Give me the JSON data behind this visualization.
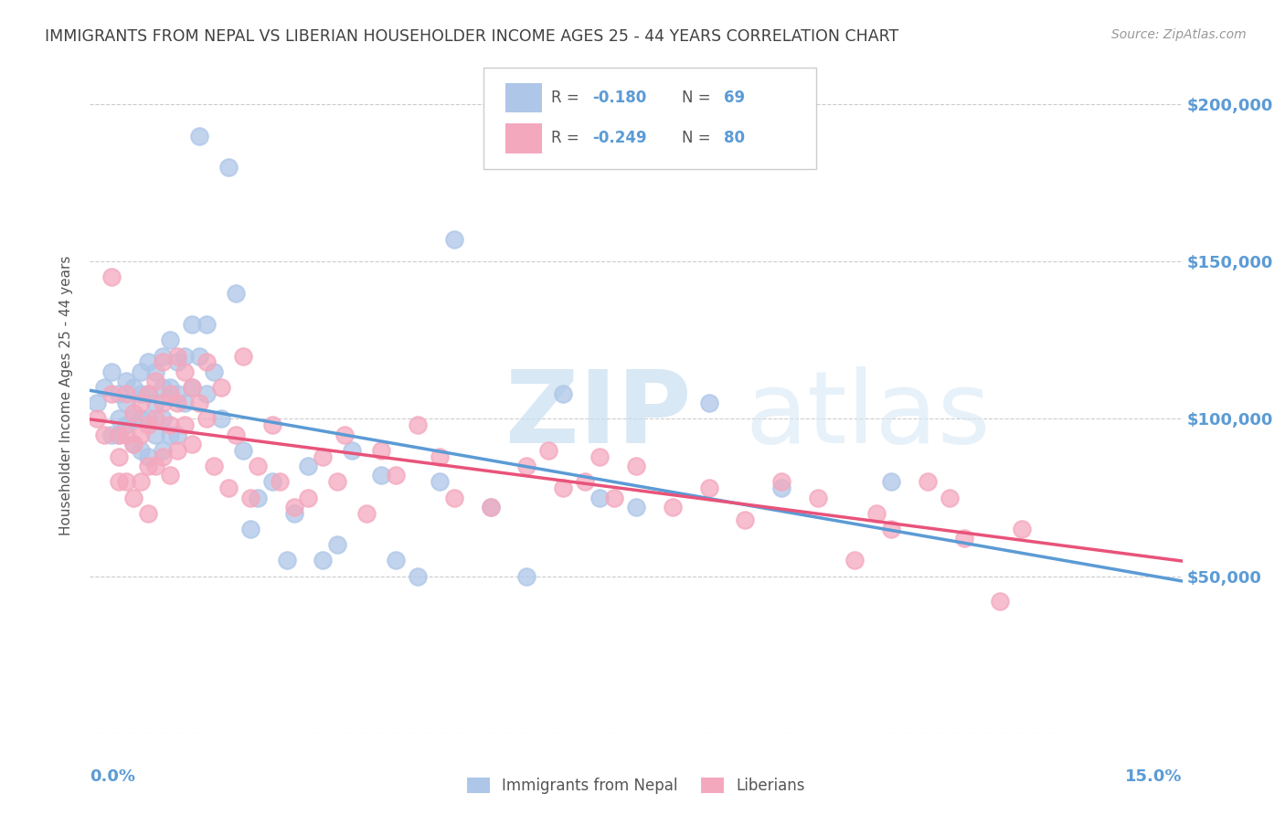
{
  "title": "IMMIGRANTS FROM NEPAL VS LIBERIAN HOUSEHOLDER INCOME AGES 25 - 44 YEARS CORRELATION CHART",
  "source": "Source: ZipAtlas.com",
  "ylabel": "Householder Income Ages 25 - 44 years",
  "yticks": [
    0,
    50000,
    100000,
    150000,
    200000
  ],
  "ytick_labels": [
    "",
    "$50,000",
    "$100,000",
    "$150,000",
    "$200,000"
  ],
  "xmin": 0.0,
  "xmax": 0.15,
  "ymin": 0,
  "ymax": 215000,
  "nepal_color": "#aec6e8",
  "liberia_color": "#f4a8be",
  "nepal_line_color": "#5b9bd5",
  "liberia_line_color": "#e8537a",
  "legend_label_nepal": "Immigrants from Nepal",
  "legend_label_liberia": "Liberians",
  "title_color": "#404040",
  "axis_color": "#5b9bd5",
  "nepal_scatter_x": [
    0.001,
    0.002,
    0.003,
    0.003,
    0.004,
    0.004,
    0.004,
    0.005,
    0.005,
    0.005,
    0.006,
    0.006,
    0.006,
    0.007,
    0.007,
    0.007,
    0.007,
    0.008,
    0.008,
    0.008,
    0.008,
    0.009,
    0.009,
    0.009,
    0.01,
    0.01,
    0.01,
    0.01,
    0.011,
    0.011,
    0.011,
    0.012,
    0.012,
    0.012,
    0.013,
    0.013,
    0.014,
    0.014,
    0.015,
    0.015,
    0.016,
    0.016,
    0.017,
    0.018,
    0.019,
    0.02,
    0.021,
    0.022,
    0.023,
    0.025,
    0.027,
    0.028,
    0.03,
    0.032,
    0.034,
    0.036,
    0.04,
    0.042,
    0.045,
    0.048,
    0.05,
    0.055,
    0.06,
    0.065,
    0.07,
    0.075,
    0.085,
    0.095,
    0.11
  ],
  "nepal_scatter_y": [
    105000,
    110000,
    95000,
    115000,
    108000,
    100000,
    95000,
    112000,
    105000,
    98000,
    110000,
    100000,
    92000,
    115000,
    108000,
    100000,
    90000,
    118000,
    108000,
    100000,
    88000,
    115000,
    105000,
    95000,
    120000,
    110000,
    100000,
    90000,
    125000,
    110000,
    95000,
    118000,
    108000,
    95000,
    120000,
    105000,
    130000,
    110000,
    190000,
    120000,
    130000,
    108000,
    115000,
    100000,
    180000,
    140000,
    90000,
    65000,
    75000,
    80000,
    55000,
    70000,
    85000,
    55000,
    60000,
    90000,
    82000,
    55000,
    50000,
    80000,
    157000,
    72000,
    50000,
    108000,
    75000,
    72000,
    105000,
    78000,
    80000
  ],
  "liberia_scatter_x": [
    0.001,
    0.002,
    0.003,
    0.003,
    0.004,
    0.004,
    0.004,
    0.005,
    0.005,
    0.005,
    0.006,
    0.006,
    0.006,
    0.007,
    0.007,
    0.007,
    0.008,
    0.008,
    0.008,
    0.008,
    0.009,
    0.009,
    0.009,
    0.01,
    0.01,
    0.01,
    0.011,
    0.011,
    0.011,
    0.012,
    0.012,
    0.012,
    0.013,
    0.013,
    0.014,
    0.014,
    0.015,
    0.016,
    0.016,
    0.017,
    0.018,
    0.019,
    0.02,
    0.021,
    0.022,
    0.023,
    0.025,
    0.026,
    0.028,
    0.03,
    0.032,
    0.034,
    0.035,
    0.038,
    0.04,
    0.042,
    0.045,
    0.048,
    0.05,
    0.055,
    0.06,
    0.063,
    0.065,
    0.068,
    0.07,
    0.072,
    0.075,
    0.08,
    0.085,
    0.09,
    0.095,
    0.1,
    0.105,
    0.108,
    0.11,
    0.115,
    0.118,
    0.12,
    0.125,
    0.128
  ],
  "liberia_scatter_y": [
    100000,
    95000,
    145000,
    108000,
    95000,
    88000,
    80000,
    108000,
    95000,
    80000,
    102000,
    92000,
    75000,
    105000,
    95000,
    80000,
    108000,
    98000,
    85000,
    70000,
    112000,
    100000,
    85000,
    118000,
    105000,
    88000,
    108000,
    98000,
    82000,
    120000,
    105000,
    90000,
    115000,
    98000,
    110000,
    92000,
    105000,
    118000,
    100000,
    85000,
    110000,
    78000,
    95000,
    120000,
    75000,
    85000,
    98000,
    80000,
    72000,
    75000,
    88000,
    80000,
    95000,
    70000,
    90000,
    82000,
    98000,
    88000,
    75000,
    72000,
    85000,
    90000,
    78000,
    80000,
    88000,
    75000,
    85000,
    72000,
    78000,
    68000,
    80000,
    75000,
    55000,
    70000,
    65000,
    80000,
    75000,
    62000,
    42000,
    65000
  ]
}
